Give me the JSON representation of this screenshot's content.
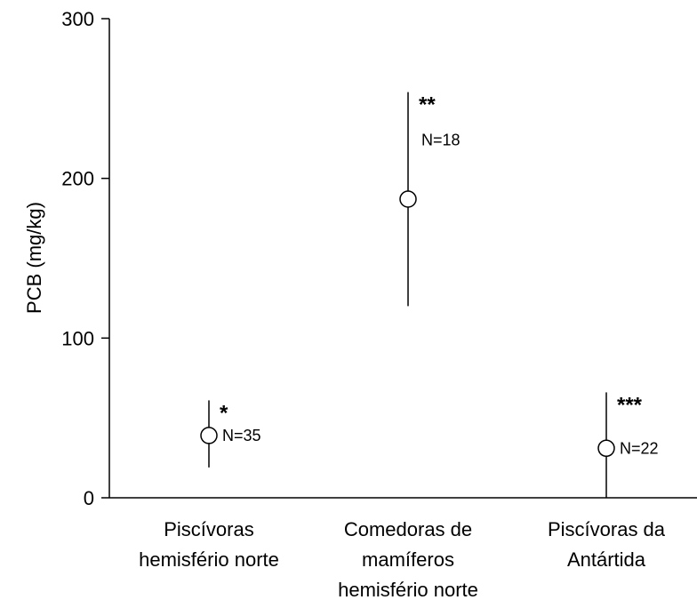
{
  "chart_data": {
    "type": "scatter",
    "title": "",
    "xlabel": "",
    "ylabel": "PCB (mg/kg)",
    "ylim": [
      0,
      300
    ],
    "yticks": [
      0,
      100,
      200,
      300
    ],
    "grid": false,
    "categories": [
      [
        "Piscívoras",
        "hemisfério norte"
      ],
      [
        "Comedoras de",
        "mamíferos",
        "hemisfério norte"
      ],
      [
        "Piscívoras da",
        "Antártida"
      ]
    ],
    "points": [
      {
        "mean": 39,
        "low": 19,
        "high": 61,
        "significance": "*",
        "n_label": "N=35"
      },
      {
        "mean": 187,
        "low": 120,
        "high": 254,
        "significance": "**",
        "n_label": "N=18"
      },
      {
        "mean": 31,
        "low": 0,
        "high": 66,
        "significance": "***",
        "n_label": "N=22"
      }
    ]
  }
}
